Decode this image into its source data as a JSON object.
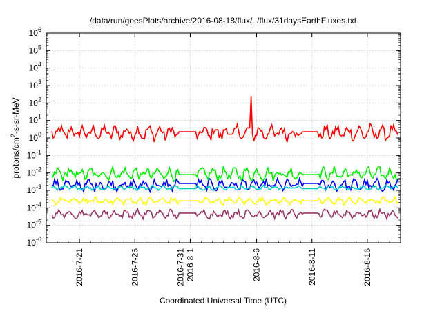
{
  "chart_data": {
    "type": "line",
    "title": "/data/run/goesPlots/archive/2016-08-18/flux/../flux/31daysEarthFluxes.txt",
    "xlabel": "Coordinated Universal Time (UTC)",
    "ylabel_parts": [
      "protons/cm",
      "2",
      "-s-sr-MeV"
    ],
    "yscale": "log",
    "ylim_exp": [
      -6,
      6
    ],
    "y_ticks": [
      {
        "base": "10",
        "exp": "-6"
      },
      {
        "base": "10",
        "exp": "-5"
      },
      {
        "base": "10",
        "exp": "-4"
      },
      {
        "base": "10",
        "exp": "-3"
      },
      {
        "base": "10",
        "exp": "-2"
      },
      {
        "base": "10",
        "exp": "-1"
      },
      {
        "base": "10",
        "exp": "0"
      },
      {
        "base": "10",
        "exp": "1"
      },
      {
        "base": "10",
        "exp": "2"
      },
      {
        "base": "10",
        "exp": "3"
      },
      {
        "base": "10",
        "exp": "4"
      },
      {
        "base": "10",
        "exp": "5"
      },
      {
        "base": "10",
        "exp": "6"
      }
    ],
    "xlim": [
      "2016-07-18",
      "2016-08-19"
    ],
    "x_ticks": [
      {
        "date": "2016-07-21",
        "lines": [
          "2016-7-21"
        ]
      },
      {
        "date": "2016-07-26",
        "lines": [
          "2016-7-26"
        ]
      },
      {
        "date": "2016-07-31",
        "lines": [
          "2016-7-31",
          "2016-8-1"
        ]
      },
      {
        "date": "2016-08-06",
        "lines": [
          "2016-8-6"
        ]
      },
      {
        "date": "2016-08-11",
        "lines": [
          "2016-8-11"
        ]
      },
      {
        "date": "2016-08-16",
        "lines": [
          "2016-8-16"
        ]
      }
    ],
    "grid": true,
    "series": [
      {
        "color": "#ff0000",
        "baseline_log": 0.3,
        "amplitude": 0.55,
        "gap_value_log": 0.35,
        "spike": {
          "date": "2016-08-05T12:00",
          "value_log": 2.4
        }
      },
      {
        "color": "#00ee00",
        "baseline_log": -2.05,
        "amplitude": 0.45,
        "gap_value_log": -2.1
      },
      {
        "color": "#0000ff",
        "baseline_log": -2.7,
        "amplitude": 0.4,
        "gap_value_log": -2.6
      },
      {
        "color": "#00cccc",
        "baseline_log": -2.85,
        "amplitude": 0.15,
        "gap_value_log": -2.9
      },
      {
        "color": "#ffff00",
        "baseline_log": -3.6,
        "amplitude": 0.25,
        "gap_value_log": -3.6
      },
      {
        "color": "#993366",
        "baseline_log": -4.35,
        "amplitude": 0.3,
        "gap_value_log": -4.3
      }
    ],
    "gap_ranges": [
      [
        "2016-07-30T00:00",
        "2016-07-31T12:00"
      ],
      [
        "2016-08-10T06:00",
        "2016-08-11T12:00"
      ]
    ]
  }
}
